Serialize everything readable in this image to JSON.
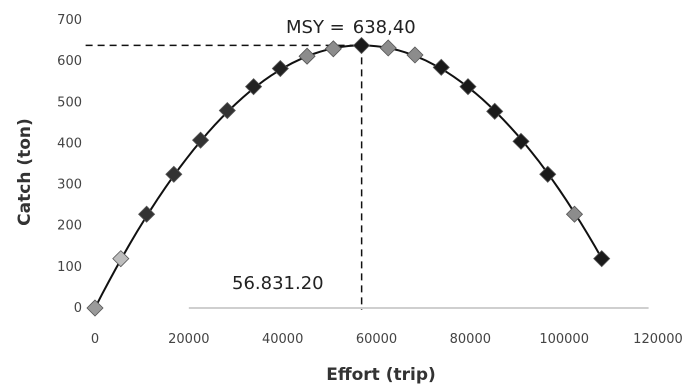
{
  "chart_data": {
    "type": "scatter",
    "xlabel": "Effort (trip)",
    "ylabel": "Catch (ton)",
    "xlim": [
      0,
      120000
    ],
    "ylim": [
      0,
      700
    ],
    "xticks": [
      0,
      20000,
      40000,
      60000,
      80000,
      100000,
      120000
    ],
    "xtick_labels": [
      "0",
      "20000",
      "40000",
      "60000",
      "80000",
      "100000",
      "120000"
    ],
    "yticks": [
      0,
      100,
      200,
      300,
      400,
      500,
      600,
      700
    ],
    "ytick_labels": [
      "0",
      "100",
      "200",
      "300",
      "400",
      "500",
      "600",
      "700"
    ],
    "grid": false,
    "points": [
      {
        "x": 0,
        "y": 0,
        "color": "#9a9a9a"
      },
      {
        "x": 5500,
        "y": 120,
        "color": "#bdbdbd"
      },
      {
        "x": 11000,
        "y": 228,
        "color": "#333333"
      },
      {
        "x": 16800,
        "y": 325,
        "color": "#333333"
      },
      {
        "x": 22500,
        "y": 408,
        "color": "#333333"
      },
      {
        "x": 28200,
        "y": 480,
        "color": "#333333"
      },
      {
        "x": 33800,
        "y": 538,
        "color": "#222222"
      },
      {
        "x": 39500,
        "y": 582,
        "color": "#222222"
      },
      {
        "x": 45200,
        "y": 612,
        "color": "#8c8c8c"
      },
      {
        "x": 50800,
        "y": 630,
        "color": "#8c8c8c"
      },
      {
        "x": 56800,
        "y": 638,
        "color": "#1a1a1a"
      },
      {
        "x": 62500,
        "y": 632,
        "color": "#8c8c8c"
      },
      {
        "x": 68200,
        "y": 615,
        "color": "#8c8c8c"
      },
      {
        "x": 73800,
        "y": 585,
        "color": "#1a1a1a"
      },
      {
        "x": 79500,
        "y": 538,
        "color": "#1a1a1a"
      },
      {
        "x": 85200,
        "y": 478,
        "color": "#1a1a1a"
      },
      {
        "x": 90800,
        "y": 405,
        "color": "#1a1a1a"
      },
      {
        "x": 96500,
        "y": 325,
        "color": "#1a1a1a"
      },
      {
        "x": 102200,
        "y": 228,
        "color": "#8c8c8c"
      },
      {
        "x": 108000,
        "y": 120,
        "color": "#1a1a1a"
      }
    ],
    "curve": {
      "peak_x": 56831.2,
      "peak_y": 638.4
    },
    "annotations": {
      "msy_label": "MSY =",
      "msy_value": "638,40",
      "effort_value": "56.831.20"
    }
  }
}
